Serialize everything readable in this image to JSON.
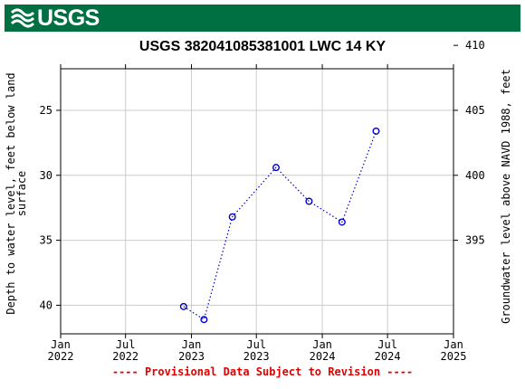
{
  "header": {
    "agency": "USGS",
    "bar_color": "#006f41"
  },
  "chart_data": {
    "type": "scatter",
    "title": "USGS 382041085381001 LWC 14 KY",
    "ylabel_left": "Depth to water level, feet below land surface",
    "ylabel_right": "Groundwater level above NAVD 1988, feet",
    "x_ticks": [
      {
        "label": "Jan\n2022",
        "date": "2022-01-01"
      },
      {
        "label": "Jul\n2022",
        "date": "2022-07-01"
      },
      {
        "label": "Jan\n2023",
        "date": "2023-01-01"
      },
      {
        "label": "Jul\n2023",
        "date": "2023-07-01"
      },
      {
        "label": "Jan\n2024",
        "date": "2024-01-01"
      },
      {
        "label": "Jul\n2024",
        "date": "2024-07-01"
      },
      {
        "label": "Jan\n2025",
        "date": "2025-01-01"
      }
    ],
    "xlim": [
      "2022-01-01",
      "2025-01-01"
    ],
    "y_left_ticks": [
      25,
      30,
      35,
      40
    ],
    "y_left_lim": [
      21.8,
      42.2
    ],
    "y_left_inverted": true,
    "y_right_ticks": [
      395,
      400,
      405,
      410
    ],
    "grid": true,
    "series": [
      {
        "color": "#0000cc",
        "marker": "open-circle",
        "line": "dotted",
        "points": [
          {
            "date": "2022-12-10",
            "y": 40.1
          },
          {
            "date": "2023-02-05",
            "y": 41.1
          },
          {
            "date": "2023-04-25",
            "y": 33.2
          },
          {
            "date": "2023-08-25",
            "y": 29.4
          },
          {
            "date": "2023-11-25",
            "y": 32.0
          },
          {
            "date": "2024-02-25",
            "y": 33.6
          },
          {
            "date": "2024-05-30",
            "y": 26.6
          }
        ]
      }
    ],
    "footnote": "---- Provisional Data Subject to Revision ----",
    "footnote_color": "#e00000"
  }
}
